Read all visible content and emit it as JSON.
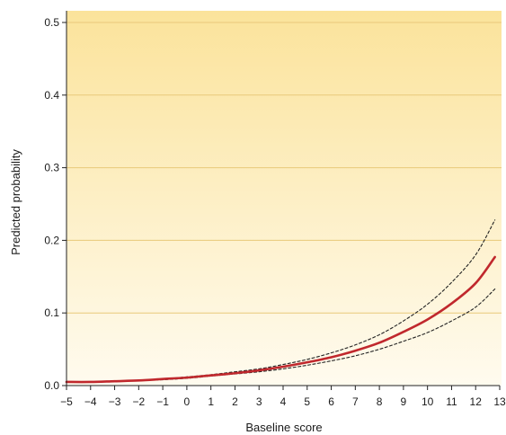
{
  "chart_data": {
    "type": "line",
    "title": "",
    "xlabel": "Baseline score",
    "ylabel": "Predicted probability",
    "xlim": [
      -5,
      13
    ],
    "ylim": [
      0,
      0.5
    ],
    "x_ticks": [
      -5,
      -4,
      -3,
      -2,
      -1,
      0,
      1,
      2,
      3,
      4,
      5,
      6,
      7,
      8,
      9,
      10,
      11,
      12,
      13
    ],
    "x_tick_labels": [
      "−5",
      "−4",
      "−3",
      "−2",
      "−1",
      "0",
      "1",
      "2",
      "3",
      "4",
      "5",
      "6",
      "7",
      "8",
      "9",
      "10",
      "11",
      "12",
      "13"
    ],
    "y_ticks": [
      0.0,
      0.1,
      0.2,
      0.3,
      0.4,
      0.5
    ],
    "y_tick_labels": [
      "0.0",
      "0.1",
      "0.2",
      "0.3",
      "0.4",
      "0.5"
    ],
    "grid": "horizontal",
    "background": {
      "top_color": "#fbe39b",
      "bottom_color": "#fffbef",
      "gridline_color": "#e8c97a"
    },
    "x": [
      -5,
      -4,
      -3,
      -2,
      -1,
      0,
      1,
      2,
      3,
      4,
      5,
      6,
      7,
      8,
      9,
      10,
      11,
      12,
      12.8
    ],
    "series": [
      {
        "role": "estimate",
        "color": "#c0282d",
        "style": "solid",
        "values": [
          0.005,
          0.005,
          0.006,
          0.007,
          0.009,
          0.011,
          0.014,
          0.017,
          0.021,
          0.026,
          0.032,
          0.039,
          0.048,
          0.059,
          0.074,
          0.091,
          0.113,
          0.141,
          0.177
        ]
      },
      {
        "role": "upper_bound",
        "color": "#222222",
        "style": "dashed",
        "values": [
          0.005,
          0.005,
          0.006,
          0.007,
          0.009,
          0.012,
          0.015,
          0.019,
          0.023,
          0.029,
          0.036,
          0.045,
          0.056,
          0.07,
          0.089,
          0.112,
          0.142,
          0.18,
          0.228
        ]
      },
      {
        "role": "lower_bound",
        "color": "#222222",
        "style": "dashed",
        "values": [
          0.005,
          0.005,
          0.006,
          0.007,
          0.008,
          0.01,
          0.013,
          0.016,
          0.019,
          0.023,
          0.028,
          0.034,
          0.041,
          0.05,
          0.061,
          0.073,
          0.089,
          0.108,
          0.133
        ]
      }
    ]
  }
}
